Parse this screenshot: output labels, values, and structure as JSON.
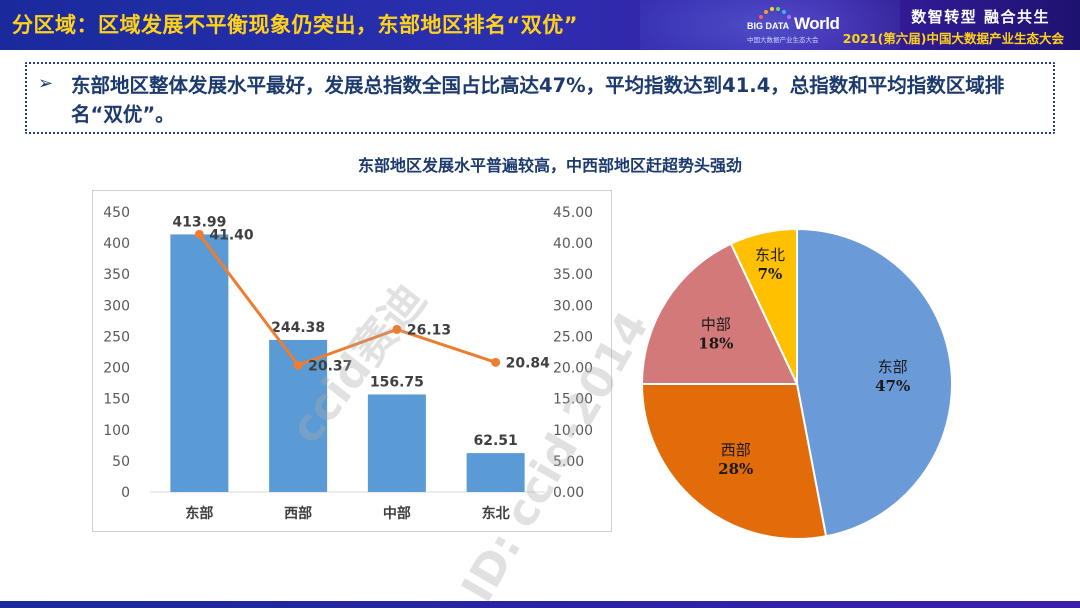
{
  "header": {
    "title": "分区域：区域发展不平衡现象仍突出，东部地区排名“双优”",
    "logo_big": "BIG DATA",
    "logo_world": "World",
    "logo_sub": "中国大数据产业生态大会",
    "slogan": "数智转型  融合共生",
    "conference": "2021(第六届)中国大数据产业生态大会",
    "colors": {
      "bar": "#2a2fb0",
      "title": "#ffd21a"
    }
  },
  "summary": {
    "arrow_icon": "➢",
    "text": "东部地区整体发展水平最好，发展总指数全国占比高达47%，平均指数达到41.4，总指数和平均指数区域排名“双优”。"
  },
  "chart_title": "东部地区发展水平普遍较高，中西部地区赶超势头强劲",
  "chart_data": [
    {
      "type": "bar",
      "categories": [
        "东部",
        "西部",
        "中部",
        "东北"
      ],
      "series": [
        {
          "type": "bar",
          "axis": "left",
          "values": [
            413.99,
            244.38,
            156.75,
            62.51
          ],
          "labels": [
            "413.99",
            "244.38",
            "156.75",
            "62.51"
          ],
          "color": "#5b9bd5"
        },
        {
          "type": "line",
          "axis": "right",
          "values": [
            41.4,
            20.37,
            26.13,
            20.84
          ],
          "labels": [
            "41.40",
            "20.37",
            "26.13",
            "20.84"
          ],
          "color": "#ed7d31"
        }
      ],
      "ylim_left": [
        0,
        450
      ],
      "yticks_left": [
        "0",
        "50",
        "100",
        "150",
        "200",
        "250",
        "300",
        "350",
        "400",
        "450"
      ],
      "ylim_right": [
        0,
        45
      ],
      "yticks_right": [
        "0.00",
        "5.00",
        "10.00",
        "15.00",
        "20.00",
        "25.00",
        "30.00",
        "35.00",
        "40.00",
        "45.00"
      ],
      "grid": false,
      "legend": "none"
    },
    {
      "type": "pie",
      "slices": [
        {
          "name": "东部",
          "value": 47,
          "label": "47%",
          "color": "#6a9bd8"
        },
        {
          "name": "西部",
          "value": 28,
          "label": "28%",
          "color": "#e36c0a"
        },
        {
          "name": "中部",
          "value": 18,
          "label": "18%",
          "color": "#d4797a"
        },
        {
          "name": "东北",
          "value": 7,
          "label": "7%",
          "color": "#ffc000"
        }
      ],
      "start": "12 o'clock",
      "direction": "clockwise",
      "legend": "none"
    }
  ],
  "watermarks": [
    "ccid赛迪",
    "ID: ccid-2014"
  ]
}
